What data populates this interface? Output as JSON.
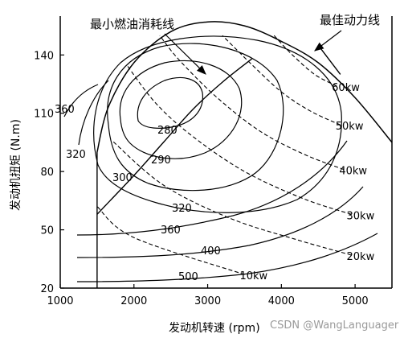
{
  "chart_data": {
    "type": "line",
    "xlabel": "发动机转速 (rpm)",
    "ylabel": "发动机扭矩 (N.m)",
    "xlim": [
      1000,
      5500
    ],
    "ylim": [
      20,
      160
    ],
    "x_ticks": [
      1000,
      2000,
      3000,
      4000,
      5000
    ],
    "y_ticks": [
      20,
      50,
      80,
      110,
      140
    ],
    "grid": false,
    "fuel_consumption_labels": [
      "280",
      "290",
      "300",
      "320",
      "320",
      "360",
      "360",
      "400",
      "500"
    ],
    "power_lines": [
      {
        "name": "10kw",
        "points": [
          [
            3500,
            27
          ],
          [
            2000,
            46
          ],
          [
            1500,
            62
          ]
        ]
      },
      {
        "name": "20kw",
        "points": [
          [
            4950,
            37
          ],
          [
            4200,
            45
          ],
          [
            3300,
            56
          ],
          [
            2400,
            73
          ],
          [
            1700,
            96
          ]
        ]
      },
      {
        "name": "30kw",
        "points": [
          [
            4950,
            58
          ],
          [
            4300,
            66
          ],
          [
            3500,
            80
          ],
          [
            2800,
            98
          ],
          [
            2300,
            115
          ],
          [
            1900,
            135
          ]
        ]
      },
      {
        "name": "40kw",
        "points": [
          [
            4850,
            81
          ],
          [
            4300,
            89
          ],
          [
            3700,
            101
          ],
          [
            3100,
            119
          ],
          [
            2600,
            138
          ],
          [
            2350,
            150
          ]
        ]
      },
      {
        "name": "50kw",
        "points": [
          [
            4800,
            104
          ],
          [
            4400,
            111
          ],
          [
            4000,
            121
          ],
          [
            3600,
            135
          ],
          [
            3200,
            150
          ]
        ]
      },
      {
        "name": "60kw",
        "points": [
          [
            4750,
            124
          ],
          [
            4450,
            130
          ],
          [
            4150,
            140
          ],
          [
            3900,
            150
          ]
        ]
      }
    ],
    "max_torque_curve": [
      [
        1500,
        90
      ],
      [
        1650,
        113
      ],
      [
        2000,
        136
      ],
      [
        2500,
        152
      ],
      [
        3000,
        157
      ],
      [
        3500,
        155
      ],
      [
        4000,
        147
      ],
      [
        4500,
        136
      ],
      [
        5000,
        118
      ],
      [
        5500,
        95
      ]
    ],
    "min_fuel_consumption_line": [
      [
        1500,
        58
      ],
      [
        2000,
        78
      ],
      [
        2400,
        95
      ],
      [
        2800,
        112
      ],
      [
        3200,
        126
      ],
      [
        3600,
        138
      ]
    ],
    "best_power_line": [
      [
        4500,
        145
      ],
      [
        4800,
        130
      ]
    ],
    "annotations": [
      "最小燃油消耗线",
      "最佳动力线"
    ]
  },
  "watermark": "CSDN @WangLanguager"
}
